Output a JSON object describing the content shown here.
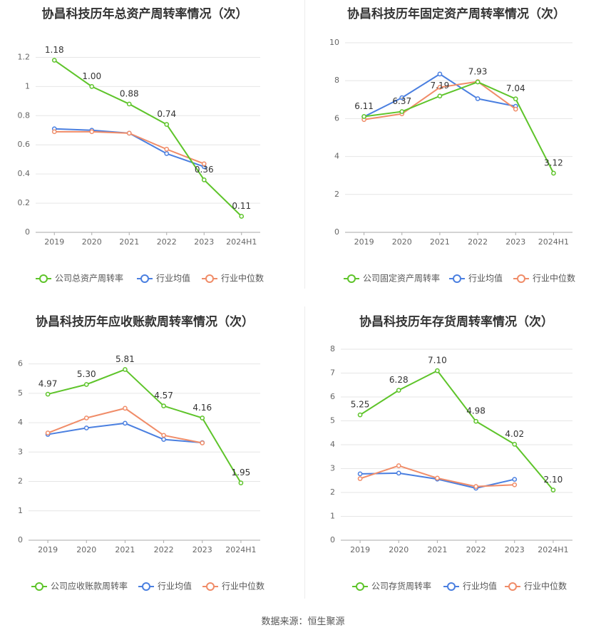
{
  "source": {
    "label": "数据来源：",
    "value": "恒生聚源"
  },
  "colors": {
    "company": "#5ec42a",
    "avg": "#4a7fe0",
    "median": "#f08c68"
  },
  "chart_data": [
    {
      "type": "line",
      "title": "协昌科技历年总资产周转率情况（次）",
      "categories": [
        "2019",
        "2020",
        "2021",
        "2022",
        "2023",
        "2024H1"
      ],
      "ylim": [
        0,
        1.3
      ],
      "yticks": [
        "0",
        "0.2",
        "0.4",
        "0.6",
        "0.8",
        "1",
        "1.2"
      ],
      "ytick_values": [
        0,
        0.2,
        0.4,
        0.6,
        0.8,
        1.0,
        1.2
      ],
      "legend": "bottom",
      "series": [
        {
          "name": "公司总资产周转率",
          "key": "company",
          "values": [
            1.18,
            1.0,
            0.88,
            0.74,
            0.36,
            0.11
          ],
          "labels": [
            "1.18",
            "1.00",
            "0.88",
            "0.74",
            "0.36",
            "0.11"
          ]
        },
        {
          "name": "行业均值",
          "key": "avg",
          "values": [
            0.71,
            0.7,
            0.68,
            0.54,
            0.45,
            null
          ]
        },
        {
          "name": "行业中位数",
          "key": "median",
          "values": [
            0.69,
            0.69,
            0.68,
            0.57,
            0.47,
            null
          ]
        }
      ]
    },
    {
      "type": "line",
      "title": "协昌科技历年固定资产周转率情况（次）",
      "categories": [
        "2019",
        "2020",
        "2021",
        "2022",
        "2023",
        "2024H1"
      ],
      "ylim": [
        0,
        10
      ],
      "yticks": [
        "0",
        "2",
        "4",
        "6",
        "8",
        "10"
      ],
      "ytick_values": [
        0,
        2,
        4,
        6,
        8,
        10
      ],
      "legend": "bottom",
      "series": [
        {
          "name": "公司固定资产周转率",
          "key": "company",
          "values": [
            6.11,
            6.37,
            7.19,
            7.93,
            7.04,
            3.12
          ],
          "labels": [
            "6.11",
            "6.37",
            "7.19",
            "7.93",
            "7.04",
            "3.12"
          ]
        },
        {
          "name": "行业均值",
          "key": "avg",
          "values": [
            6.1,
            7.1,
            8.35,
            7.05,
            6.65,
            null
          ]
        },
        {
          "name": "行业中位数",
          "key": "median",
          "values": [
            5.95,
            6.25,
            7.65,
            7.95,
            6.5,
            null
          ]
        }
      ]
    },
    {
      "type": "line",
      "title": "协昌科技历年应收账款周转率情况（次）",
      "categories": [
        "2019",
        "2020",
        "2021",
        "2022",
        "2023",
        "2024H1"
      ],
      "ylim": [
        0,
        6.5
      ],
      "yticks": [
        "0",
        "1",
        "2",
        "3",
        "4",
        "5",
        "6"
      ],
      "ytick_values": [
        0,
        1,
        2,
        3,
        4,
        5,
        6
      ],
      "legend": "bottom",
      "series": [
        {
          "name": "公司应收账款周转率",
          "key": "company",
          "values": [
            4.97,
            5.3,
            5.81,
            4.57,
            4.16,
            1.95
          ],
          "labels": [
            "4.97",
            "5.30",
            "5.81",
            "4.57",
            "4.16",
            "1.95"
          ]
        },
        {
          "name": "行业均值",
          "key": "avg",
          "values": [
            3.6,
            3.82,
            3.98,
            3.43,
            3.32,
            null
          ]
        },
        {
          "name": "行业中位数",
          "key": "median",
          "values": [
            3.65,
            4.16,
            4.49,
            3.57,
            3.31,
            null
          ]
        }
      ]
    },
    {
      "type": "line",
      "title": "协昌科技历年存货周转率情况（次）",
      "categories": [
        "2019",
        "2020",
        "2021",
        "2022",
        "2023",
        "2024H1"
      ],
      "ylim": [
        0,
        8
      ],
      "yticks": [
        "0",
        "1",
        "2",
        "3",
        "4",
        "5",
        "6",
        "7",
        "8"
      ],
      "ytick_values": [
        0,
        1,
        2,
        3,
        4,
        5,
        6,
        7,
        8
      ],
      "legend": "bottom",
      "series": [
        {
          "name": "公司存货周转率",
          "key": "company",
          "values": [
            5.25,
            6.28,
            7.1,
            4.98,
            4.02,
            2.1
          ],
          "labels": [
            "5.25",
            "6.28",
            "7.10",
            "4.98",
            "4.02",
            "2.10"
          ]
        },
        {
          "name": "行业均值",
          "key": "avg",
          "values": [
            2.78,
            2.81,
            2.56,
            2.18,
            2.55,
            null
          ]
        },
        {
          "name": "行业中位数",
          "key": "median",
          "values": [
            2.58,
            3.12,
            2.6,
            2.25,
            2.32,
            null
          ]
        }
      ]
    }
  ]
}
